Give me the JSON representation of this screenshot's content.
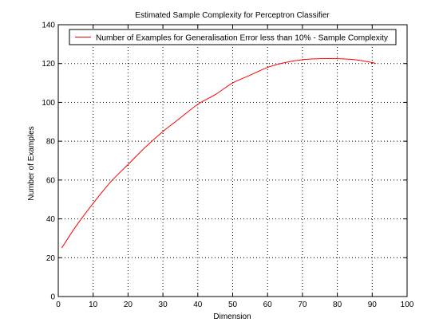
{
  "chart_data": {
    "type": "line",
    "title": "Estimated Sample Complexity for Perceptron Classifier",
    "xlabel": "Dimension",
    "ylabel": "Number of Examples",
    "xlim": [
      0,
      100
    ],
    "ylim": [
      0,
      140
    ],
    "xticks": [
      "0",
      "10",
      "20",
      "30",
      "40",
      "50",
      "60",
      "70",
      "80",
      "90",
      "100"
    ],
    "yticks": [
      "0",
      "20",
      "40",
      "60",
      "80",
      "100",
      "120",
      "140"
    ],
    "grid": true,
    "legend_position": "top",
    "series": [
      {
        "name": "Number of Examples for Generalisation Error less than 10% - Sample Complexity",
        "color": "#ff0000",
        "x": [
          1,
          5,
          10,
          15,
          20,
          25,
          30,
          35,
          40,
          45,
          50,
          55,
          60,
          65,
          70,
          75,
          80,
          85,
          90,
          91
        ],
        "y": [
          25,
          36,
          48,
          59,
          68,
          77,
          85,
          92,
          99,
          104,
          110,
          114,
          118,
          120.5,
          122,
          122.5,
          122.5,
          122,
          120.5,
          120
        ]
      }
    ]
  }
}
